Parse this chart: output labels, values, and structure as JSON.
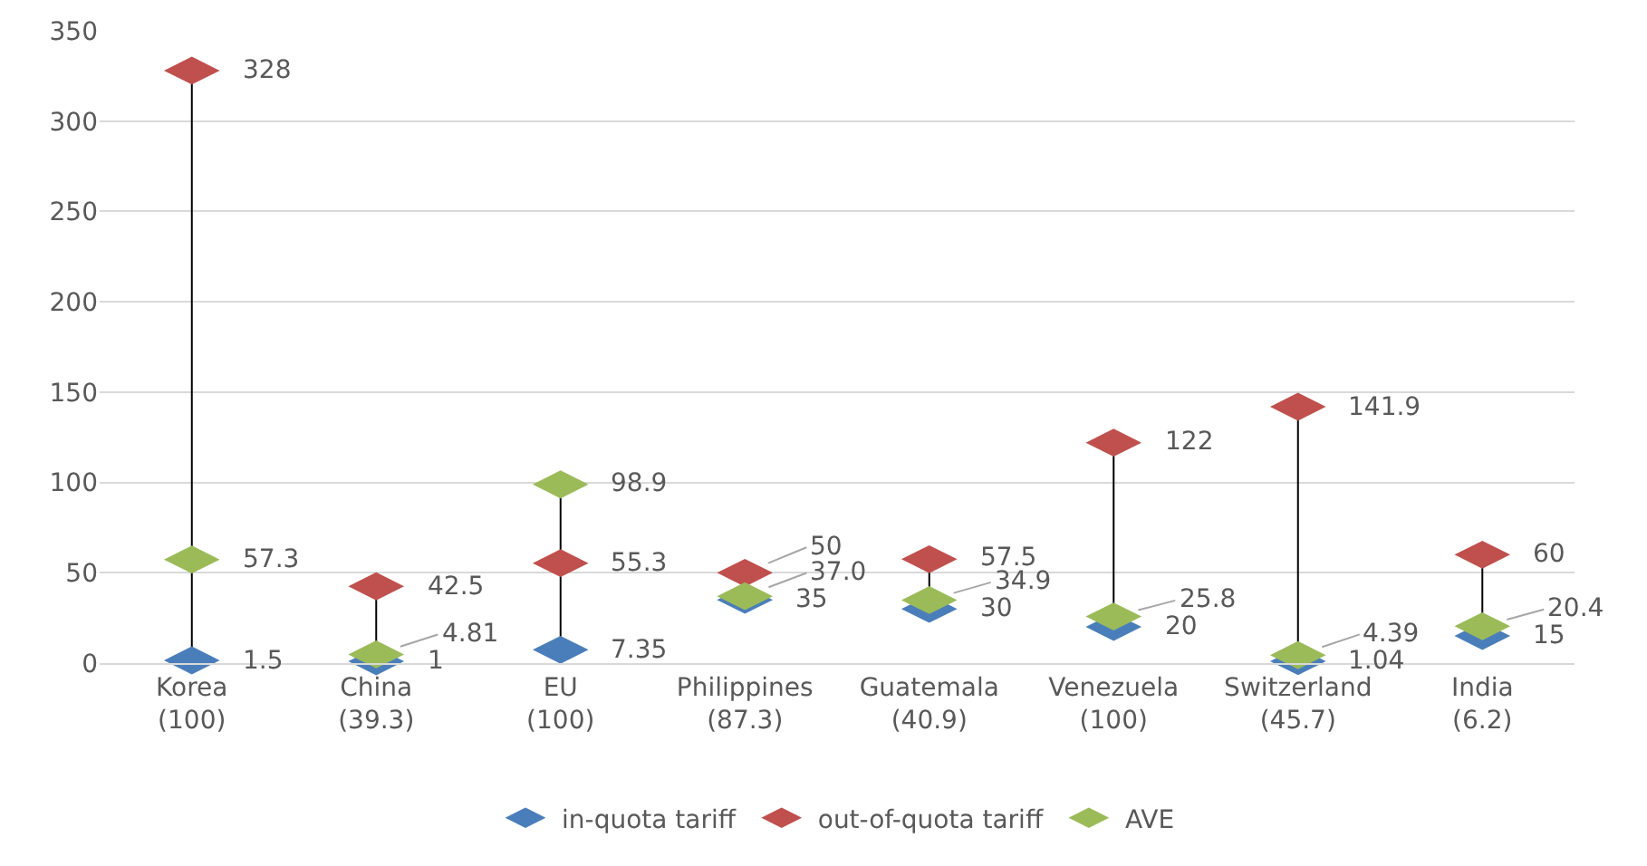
{
  "chart_data": {
    "type": "scatter",
    "categories": [
      "Korea\n(100)",
      "China\n(39.3)",
      "EU\n(100)",
      "Philippines\n(87.3)",
      "Guatemala\n(40.9)",
      "Venezuela\n(100)",
      "Switzerland\n(45.7)",
      "India\n(6.2)"
    ],
    "series": [
      {
        "name": "in-quota tariff",
        "color": "#4a7ebb",
        "values": [
          1.5,
          1,
          7.35,
          35,
          30,
          20,
          1.04,
          15
        ],
        "value_labels": [
          "1.5",
          "1",
          "7.35",
          "35",
          "30",
          "20",
          "1.04",
          "15"
        ]
      },
      {
        "name": "out-of-quota tariff",
        "color": "#c0504d",
        "values": [
          328,
          42.5,
          55.3,
          50,
          57.5,
          122,
          141.9,
          60
        ],
        "value_labels": [
          "328",
          "42.5",
          "55.3",
          "50",
          "57.5",
          "122",
          "141.9",
          "60"
        ]
      },
      {
        "name": "AVE",
        "color": "#9bbb59",
        "values": [
          57.3,
          4.81,
          98.9,
          37.0,
          34.9,
          25.8,
          4.39,
          20.4
        ],
        "value_labels": [
          "57.3",
          "4.81",
          "98.9",
          "37.0",
          "34.9",
          "25.8",
          "4.39",
          "20.4"
        ]
      }
    ],
    "ylim": [
      0,
      350
    ],
    "yticks": [
      0,
      50,
      100,
      150,
      200,
      250,
      300,
      350
    ],
    "grid": "y",
    "legend": "bottom"
  }
}
